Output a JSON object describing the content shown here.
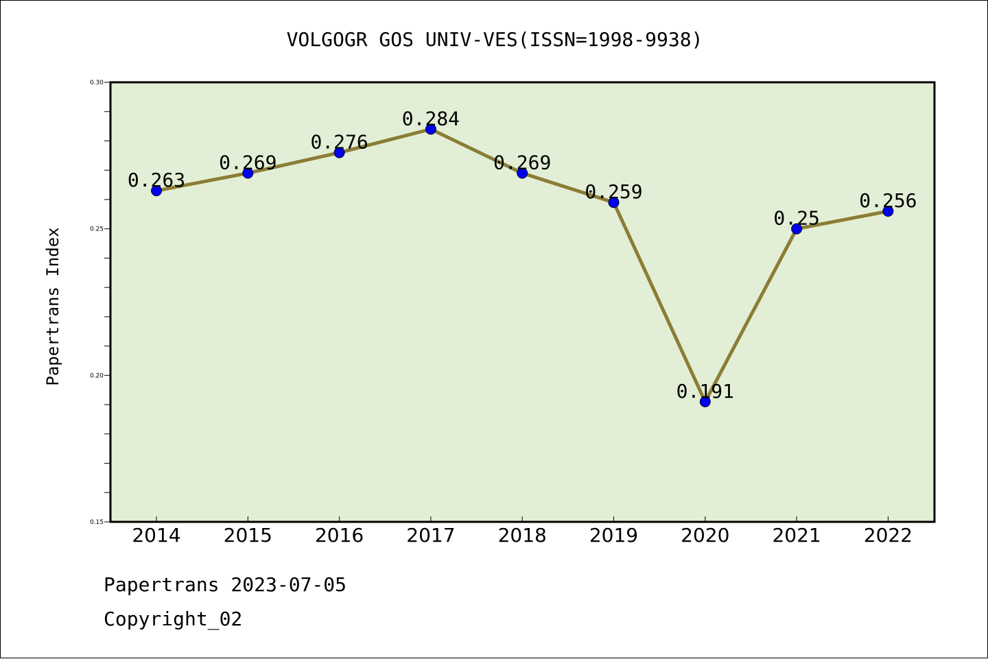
{
  "chart_data": {
    "type": "line",
    "title": "VOLGOGR GOS UNIV-VES(ISSN=1998-9938)",
    "xlabel": "",
    "ylabel": "Papertrans Index",
    "categories": [
      "2014",
      "2015",
      "2016",
      "2017",
      "2018",
      "2019",
      "2020",
      "2021",
      "2022"
    ],
    "series": [
      {
        "values": [
          0.263,
          0.269,
          0.276,
          0.284,
          0.269,
          0.259,
          0.191,
          0.25,
          0.256
        ],
        "data_labels": [
          "0.263",
          "0.269",
          "0.276",
          "0.284",
          "0.269",
          "0.259",
          "0.191",
          "0.25",
          "0.256"
        ],
        "line_color": "#8b7d35",
        "marker_color": "#0000ee"
      }
    ],
    "ylim": [
      0.15,
      0.3
    ],
    "yticks": [
      0.15,
      0.2,
      0.25,
      0.3
    ],
    "ytick_labels": [
      "0.15",
      "0.20",
      "0.25",
      "0.30"
    ],
    "plot_background": "#e2efd6",
    "grid": false,
    "legend": "none"
  },
  "footer": {
    "line1": "Papertrans 2023-07-05",
    "line2": "Copyright_02"
  }
}
